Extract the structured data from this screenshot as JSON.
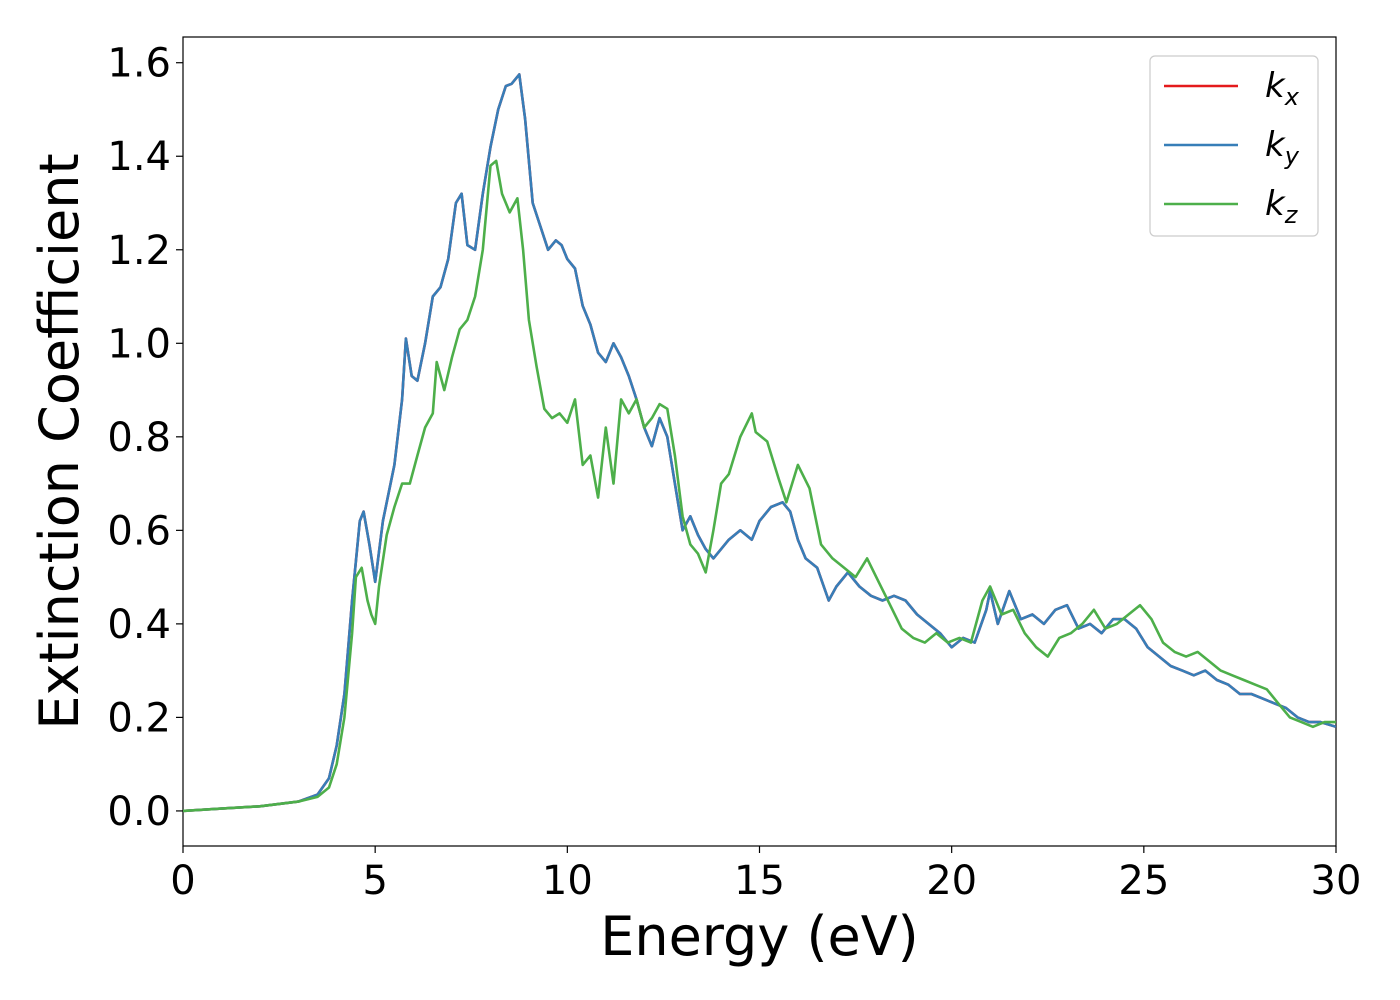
{
  "chart_data": {
    "type": "line",
    "title": "",
    "xlabel": "Energy (eV)",
    "ylabel": "Extinction Coefficient",
    "xlim": [
      0,
      30
    ],
    "ylim": [
      -0.075,
      1.655
    ],
    "xticks": [
      0,
      5,
      10,
      15,
      20,
      25,
      30
    ],
    "xtick_labels": [
      "0",
      "5",
      "10",
      "15",
      "20",
      "25",
      "30"
    ],
    "yticks": [
      0.0,
      0.2,
      0.4,
      0.6,
      0.8,
      1.0,
      1.2,
      1.4,
      1.6
    ],
    "ytick_labels": [
      "0.0",
      "0.2",
      "0.4",
      "0.6",
      "0.8",
      "1.0",
      "1.2",
      "1.4",
      "1.6"
    ],
    "grid": false,
    "legend": {
      "position": "top-right",
      "entries": [
        {
          "base": "k",
          "sub": "x",
          "color": "#e41a1c"
        },
        {
          "base": "k",
          "sub": "y",
          "color": "#377eb8"
        },
        {
          "base": "k",
          "sub": "z",
          "color": "#4daf4a"
        }
      ]
    },
    "series": [
      {
        "name": "k_x",
        "color": "#e41a1c",
        "x": [
          0,
          1,
          2,
          3,
          3.5,
          3.8,
          4.0,
          4.2,
          4.4,
          4.6,
          4.7,
          4.85,
          5.0,
          5.2,
          5.5,
          5.7,
          5.8,
          5.95,
          6.1,
          6.3,
          6.5,
          6.7,
          6.9,
          7.1,
          7.25,
          7.4,
          7.6,
          7.8,
          8.0,
          8.2,
          8.4,
          8.55,
          8.75,
          8.9,
          9.1,
          9.3,
          9.5,
          9.7,
          9.85,
          10.0,
          10.2,
          10.4,
          10.6,
          10.8,
          11.0,
          11.2,
          11.4,
          11.6,
          11.8,
          12.0,
          12.2,
          12.4,
          12.6,
          12.8,
          13.0,
          13.2,
          13.4,
          13.6,
          13.8,
          14.0,
          14.2,
          14.5,
          14.8,
          15.0,
          15.3,
          15.6,
          15.8,
          16.0,
          16.2,
          16.5,
          16.8,
          17.0,
          17.3,
          17.6,
          17.9,
          18.2,
          18.5,
          18.8,
          19.1,
          19.4,
          19.7,
          20.0,
          20.3,
          20.6,
          20.9,
          21.0,
          21.2,
          21.5,
          21.8,
          22.1,
          22.4,
          22.7,
          23.0,
          23.3,
          23.6,
          23.9,
          24.2,
          24.5,
          24.8,
          25.1,
          25.4,
          25.7,
          26.0,
          26.3,
          26.6,
          26.9,
          27.2,
          27.5,
          27.8,
          28.1,
          28.4,
          28.7,
          29.0,
          29.3,
          29.6,
          30.0
        ],
        "y": [
          0.0,
          0.005,
          0.01,
          0.02,
          0.035,
          0.07,
          0.14,
          0.25,
          0.45,
          0.62,
          0.64,
          0.57,
          0.49,
          0.62,
          0.74,
          0.88,
          1.01,
          0.93,
          0.92,
          1.0,
          1.1,
          1.12,
          1.18,
          1.3,
          1.32,
          1.21,
          1.2,
          1.32,
          1.42,
          1.5,
          1.55,
          1.555,
          1.575,
          1.48,
          1.3,
          1.25,
          1.2,
          1.22,
          1.21,
          1.18,
          1.16,
          1.08,
          1.04,
          0.98,
          0.96,
          1.0,
          0.97,
          0.93,
          0.88,
          0.82,
          0.78,
          0.84,
          0.8,
          0.7,
          0.6,
          0.63,
          0.59,
          0.56,
          0.54,
          0.56,
          0.58,
          0.6,
          0.58,
          0.62,
          0.65,
          0.66,
          0.64,
          0.58,
          0.54,
          0.52,
          0.45,
          0.48,
          0.51,
          0.48,
          0.46,
          0.45,
          0.46,
          0.45,
          0.42,
          0.4,
          0.38,
          0.35,
          0.37,
          0.36,
          0.43,
          0.47,
          0.4,
          0.47,
          0.41,
          0.42,
          0.4,
          0.43,
          0.44,
          0.39,
          0.4,
          0.38,
          0.41,
          0.41,
          0.39,
          0.35,
          0.33,
          0.31,
          0.3,
          0.29,
          0.3,
          0.28,
          0.27,
          0.25,
          0.25,
          0.24,
          0.23,
          0.22,
          0.2,
          0.19,
          0.19,
          0.18
        ]
      },
      {
        "name": "k_y",
        "color": "#377eb8",
        "x": [
          0,
          1,
          2,
          3,
          3.5,
          3.8,
          4.0,
          4.2,
          4.4,
          4.6,
          4.7,
          4.85,
          5.0,
          5.2,
          5.5,
          5.7,
          5.8,
          5.95,
          6.1,
          6.3,
          6.5,
          6.7,
          6.9,
          7.1,
          7.25,
          7.4,
          7.6,
          7.8,
          8.0,
          8.2,
          8.4,
          8.55,
          8.75,
          8.9,
          9.1,
          9.3,
          9.5,
          9.7,
          9.85,
          10.0,
          10.2,
          10.4,
          10.6,
          10.8,
          11.0,
          11.2,
          11.4,
          11.6,
          11.8,
          12.0,
          12.2,
          12.4,
          12.6,
          12.8,
          13.0,
          13.2,
          13.4,
          13.6,
          13.8,
          14.0,
          14.2,
          14.5,
          14.8,
          15.0,
          15.3,
          15.6,
          15.8,
          16.0,
          16.2,
          16.5,
          16.8,
          17.0,
          17.3,
          17.6,
          17.9,
          18.2,
          18.5,
          18.8,
          19.1,
          19.4,
          19.7,
          20.0,
          20.3,
          20.6,
          20.9,
          21.0,
          21.2,
          21.5,
          21.8,
          22.1,
          22.4,
          22.7,
          23.0,
          23.3,
          23.6,
          23.9,
          24.2,
          24.5,
          24.8,
          25.1,
          25.4,
          25.7,
          26.0,
          26.3,
          26.6,
          26.9,
          27.2,
          27.5,
          27.8,
          28.1,
          28.4,
          28.7,
          29.0,
          29.3,
          29.6,
          30.0
        ],
        "y": [
          0.0,
          0.005,
          0.01,
          0.02,
          0.035,
          0.07,
          0.14,
          0.25,
          0.45,
          0.62,
          0.64,
          0.57,
          0.49,
          0.62,
          0.74,
          0.88,
          1.01,
          0.93,
          0.92,
          1.0,
          1.1,
          1.12,
          1.18,
          1.3,
          1.32,
          1.21,
          1.2,
          1.32,
          1.42,
          1.5,
          1.55,
          1.555,
          1.575,
          1.48,
          1.3,
          1.25,
          1.2,
          1.22,
          1.21,
          1.18,
          1.16,
          1.08,
          1.04,
          0.98,
          0.96,
          1.0,
          0.97,
          0.93,
          0.88,
          0.82,
          0.78,
          0.84,
          0.8,
          0.7,
          0.6,
          0.63,
          0.59,
          0.56,
          0.54,
          0.56,
          0.58,
          0.6,
          0.58,
          0.62,
          0.65,
          0.66,
          0.64,
          0.58,
          0.54,
          0.52,
          0.45,
          0.48,
          0.51,
          0.48,
          0.46,
          0.45,
          0.46,
          0.45,
          0.42,
          0.4,
          0.38,
          0.35,
          0.37,
          0.36,
          0.43,
          0.47,
          0.4,
          0.47,
          0.41,
          0.42,
          0.4,
          0.43,
          0.44,
          0.39,
          0.4,
          0.38,
          0.41,
          0.41,
          0.39,
          0.35,
          0.33,
          0.31,
          0.3,
          0.29,
          0.3,
          0.28,
          0.27,
          0.25,
          0.25,
          0.24,
          0.23,
          0.22,
          0.2,
          0.19,
          0.19,
          0.18
        ]
      },
      {
        "name": "k_z",
        "color": "#4daf4a",
        "x": [
          0,
          1,
          2,
          3,
          3.5,
          3.8,
          4.0,
          4.2,
          4.4,
          4.5,
          4.65,
          4.8,
          4.9,
          5.0,
          5.1,
          5.3,
          5.5,
          5.7,
          5.9,
          6.1,
          6.3,
          6.5,
          6.6,
          6.8,
          7.0,
          7.2,
          7.4,
          7.6,
          7.8,
          8.0,
          8.15,
          8.3,
          8.5,
          8.7,
          8.85,
          9.0,
          9.2,
          9.4,
          9.6,
          9.8,
          10.0,
          10.2,
          10.4,
          10.6,
          10.8,
          11.0,
          11.2,
          11.4,
          11.6,
          11.8,
          12.0,
          12.2,
          12.4,
          12.6,
          12.8,
          13.0,
          13.2,
          13.4,
          13.6,
          13.8,
          14.0,
          14.2,
          14.5,
          14.8,
          14.9,
          15.2,
          15.5,
          15.7,
          16.0,
          16.3,
          16.6,
          16.9,
          17.2,
          17.5,
          17.8,
          18.1,
          18.4,
          18.7,
          19.0,
          19.3,
          19.6,
          19.9,
          20.2,
          20.5,
          20.8,
          21.0,
          21.3,
          21.6,
          21.9,
          22.2,
          22.5,
          22.8,
          23.1,
          23.4,
          23.7,
          24.0,
          24.3,
          24.6,
          24.9,
          25.2,
          25.5,
          25.8,
          26.1,
          26.4,
          26.7,
          27.0,
          27.3,
          27.6,
          27.9,
          28.2,
          28.5,
          28.8,
          29.1,
          29.4,
          29.7,
          30.0
        ],
        "y": [
          0.0,
          0.005,
          0.01,
          0.02,
          0.03,
          0.05,
          0.1,
          0.2,
          0.38,
          0.5,
          0.52,
          0.45,
          0.42,
          0.4,
          0.48,
          0.59,
          0.65,
          0.7,
          0.7,
          0.76,
          0.82,
          0.85,
          0.96,
          0.9,
          0.97,
          1.03,
          1.05,
          1.1,
          1.2,
          1.38,
          1.39,
          1.32,
          1.28,
          1.31,
          1.2,
          1.05,
          0.95,
          0.86,
          0.84,
          0.85,
          0.83,
          0.88,
          0.74,
          0.76,
          0.67,
          0.82,
          0.7,
          0.88,
          0.85,
          0.88,
          0.82,
          0.84,
          0.87,
          0.86,
          0.76,
          0.63,
          0.57,
          0.55,
          0.51,
          0.6,
          0.7,
          0.72,
          0.8,
          0.85,
          0.81,
          0.79,
          0.71,
          0.66,
          0.74,
          0.69,
          0.57,
          0.54,
          0.52,
          0.5,
          0.54,
          0.49,
          0.44,
          0.39,
          0.37,
          0.36,
          0.38,
          0.36,
          0.37,
          0.36,
          0.45,
          0.48,
          0.42,
          0.43,
          0.38,
          0.35,
          0.33,
          0.37,
          0.38,
          0.4,
          0.43,
          0.39,
          0.4,
          0.42,
          0.44,
          0.41,
          0.36,
          0.34,
          0.33,
          0.34,
          0.32,
          0.3,
          0.29,
          0.28,
          0.27,
          0.26,
          0.23,
          0.2,
          0.19,
          0.18,
          0.19,
          0.19
        ]
      }
    ]
  }
}
